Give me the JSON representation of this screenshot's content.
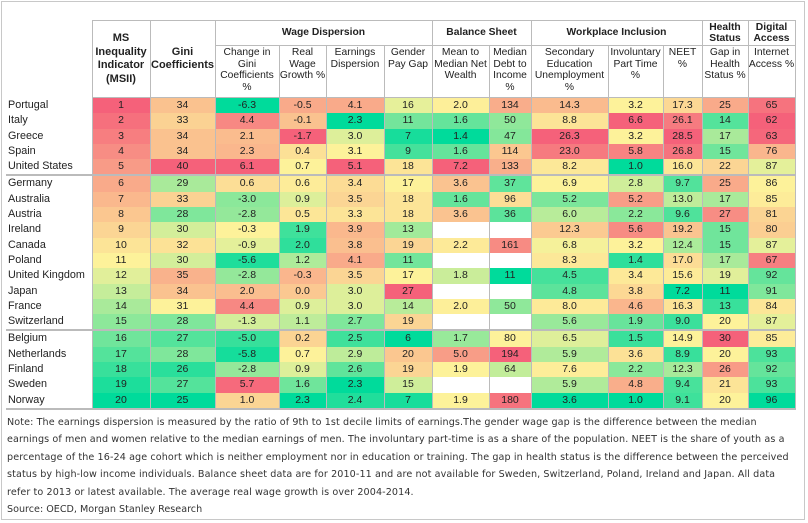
{
  "colors": {
    "bad": "#f5617a",
    "mid": "#fdf29a",
    "good": "#00db9b"
  },
  "groups": [
    {
      "label": "",
      "span": 1
    },
    {
      "label": "",
      "span": 1
    },
    {
      "label": "Wage Dispersion",
      "span": 4
    },
    {
      "label": "Balance Sheet",
      "span": 2
    },
    {
      "label": "Workplace Inclusion",
      "span": 3
    },
    {
      "label": "Health Status",
      "span": 1
    },
    {
      "label": "Digital Access",
      "span": 1
    }
  ],
  "columns": [
    {
      "label": "MS Inequality Indicator (MSII)",
      "high_is_bad": false,
      "bold": true
    },
    {
      "label": "Gini Coefficients",
      "high_is_bad": true,
      "bold": true
    },
    {
      "label": "Change in Gini Coefficients %",
      "high_is_bad": true
    },
    {
      "label": "Real Wage Growth %",
      "high_is_bad": false
    },
    {
      "label": "Earnings Dispersion",
      "high_is_bad": true
    },
    {
      "label": "Gender Pay Gap",
      "high_is_bad": true
    },
    {
      "label": "Mean to Median Net Wealth",
      "high_is_bad": true
    },
    {
      "label": "Median Debt to Income %",
      "high_is_bad": true
    },
    {
      "label": "Secondary Education Unemployment %",
      "high_is_bad": true
    },
    {
      "label": "Involuntary Part Time %",
      "high_is_bad": true
    },
    {
      "label": "NEET %",
      "high_is_bad": true
    },
    {
      "label": "Gap in Health Status %",
      "high_is_bad": true
    },
    {
      "label": "Internet Access %",
      "high_is_bad": false
    }
  ],
  "chart_data": {
    "type": "heatmap",
    "rows": [
      {
        "country": "Portugal",
        "values": [
          "1",
          "34",
          "-6.3",
          "-0.5",
          "4.1",
          "16",
          "2.0",
          "134",
          "14.3",
          "3.2",
          "17.3",
          "25",
          "65"
        ]
      },
      {
        "country": "Italy",
        "values": [
          "2",
          "33",
          "4.4",
          "-0.1",
          "2.3",
          "11",
          "1.6",
          "50",
          "8.8",
          "6.6",
          "26.1",
          "14",
          "62"
        ]
      },
      {
        "country": "Greece",
        "values": [
          "3",
          "34",
          "2.1",
          "-1.7",
          "3.0",
          "7",
          "1.4",
          "47",
          "26.3",
          "3.2",
          "28.5",
          "17",
          "63"
        ]
      },
      {
        "country": "Spain",
        "values": [
          "4",
          "34",
          "2.3",
          "0.4",
          "3.1",
          "9",
          "1.6",
          "114",
          "23.0",
          "5.8",
          "26.8",
          "15",
          "76"
        ]
      },
      {
        "country": "United States",
        "values": [
          "5",
          "40",
          "6.1",
          "0.7",
          "5.1",
          "18",
          "7.2",
          "133",
          "8.2",
          "1.0",
          "16.0",
          "22",
          "87"
        ]
      },
      {
        "country": "Germany",
        "values": [
          "6",
          "29",
          "0.6",
          "0.6",
          "3.4",
          "17",
          "3.6",
          "37",
          "6.9",
          "2.8",
          "9.7",
          "25",
          "86"
        ]
      },
      {
        "country": "Australia",
        "values": [
          "7",
          "33",
          "-3.0",
          "0.9",
          "3.5",
          "18",
          "1.6",
          "96",
          "5.2",
          "5.2",
          "13.0",
          "17",
          "85"
        ]
      },
      {
        "country": "Austria",
        "values": [
          "8",
          "28",
          "-2.8",
          "0.5",
          "3.3",
          "18",
          "3.6",
          "36",
          "6.0",
          "2.2",
          "9.6",
          "27",
          "81"
        ]
      },
      {
        "country": "Ireland",
        "values": [
          "9",
          "30",
          "-0.3",
          "1.9",
          "3.9",
          "13",
          "",
          "",
          "12.3",
          "5.6",
          "19.2",
          "15",
          "80"
        ]
      },
      {
        "country": "Canada",
        "values": [
          "10",
          "32",
          "-0.9",
          "2.0",
          "3.8",
          "19",
          "2.2",
          "161",
          "6.8",
          "3.2",
          "12.4",
          "15",
          "87"
        ]
      },
      {
        "country": "Poland",
        "values": [
          "11",
          "30",
          "-5.6",
          "1.2",
          "4.1",
          "11",
          "",
          "",
          "8.3",
          "1.4",
          "17.0",
          "17",
          "67"
        ]
      },
      {
        "country": "United Kingdom",
        "values": [
          "12",
          "35",
          "-2.8",
          "-0.3",
          "3.5",
          "17",
          "1.8",
          "11",
          "4.5",
          "3.4",
          "15.6",
          "19",
          "92"
        ]
      },
      {
        "country": "Japan",
        "values": [
          "13",
          "34",
          "2.0",
          "0.0",
          "3.0",
          "27",
          "",
          "",
          "4.8",
          "3.8",
          "7.2",
          "11",
          "91"
        ]
      },
      {
        "country": "France",
        "values": [
          "14",
          "31",
          "4.4",
          "0.9",
          "3.0",
          "14",
          "2.0",
          "50",
          "8.0",
          "4.6",
          "16.3",
          "13",
          "84"
        ]
      },
      {
        "country": "Switzerland",
        "values": [
          "15",
          "28",
          "-1.3",
          "1.1",
          "2.7",
          "19",
          "",
          "",
          "5.6",
          "1.9",
          "9.0",
          "20",
          "87"
        ]
      },
      {
        "country": "Belgium",
        "values": [
          "16",
          "27",
          "-5.0",
          "0.2",
          "2.5",
          "6",
          "1.7",
          "80",
          "6.5",
          "1.5",
          "14.9",
          "30",
          "85"
        ]
      },
      {
        "country": "Netherlands",
        "values": [
          "17",
          "28",
          "-5.8",
          "0.7",
          "2.9",
          "20",
          "5.0",
          "194",
          "5.9",
          "3.6",
          "8.9",
          "20",
          "93"
        ]
      },
      {
        "country": "Finland",
        "values": [
          "18",
          "26",
          "-2.8",
          "0.9",
          "2.6",
          "19",
          "1.9",
          "64",
          "7.6",
          "2.2",
          "12.3",
          "26",
          "92"
        ]
      },
      {
        "country": "Sweden",
        "values": [
          "19",
          "27",
          "5.7",
          "1.6",
          "2.3",
          "15",
          "",
          "",
          "5.9",
          "4.8",
          "9.4",
          "21",
          "93"
        ]
      },
      {
        "country": "Norway",
        "values": [
          "20",
          "25",
          "1.0",
          "2.3",
          "2.4",
          "7",
          "1.9",
          "180",
          "3.6",
          "1.0",
          "9.1",
          "20",
          "96"
        ]
      }
    ]
  },
  "note": "Note: The earnings dispersion is measured by the ratio of 9th to 1st decile limits of earnings.The gender wage gap is the difference between the median earnings of men and women relative to the median earnings of men. The involuntary part-time is as a share of the population. NEET is the share of youth as a percentage of the 16-24 age cohort which is neither employment nor in education or training. The gap in health status is the difference between the perceived status by high-low income individuals. Balance sheet data are for 2010-11 and are not available for Sweden, Switzerland, Poland, Ireland and Japan. All data refer to 2013 or latest available. The average real wage growth is over 2004-2014.",
  "source": "Source: OECD, Morgan Stanley Research"
}
